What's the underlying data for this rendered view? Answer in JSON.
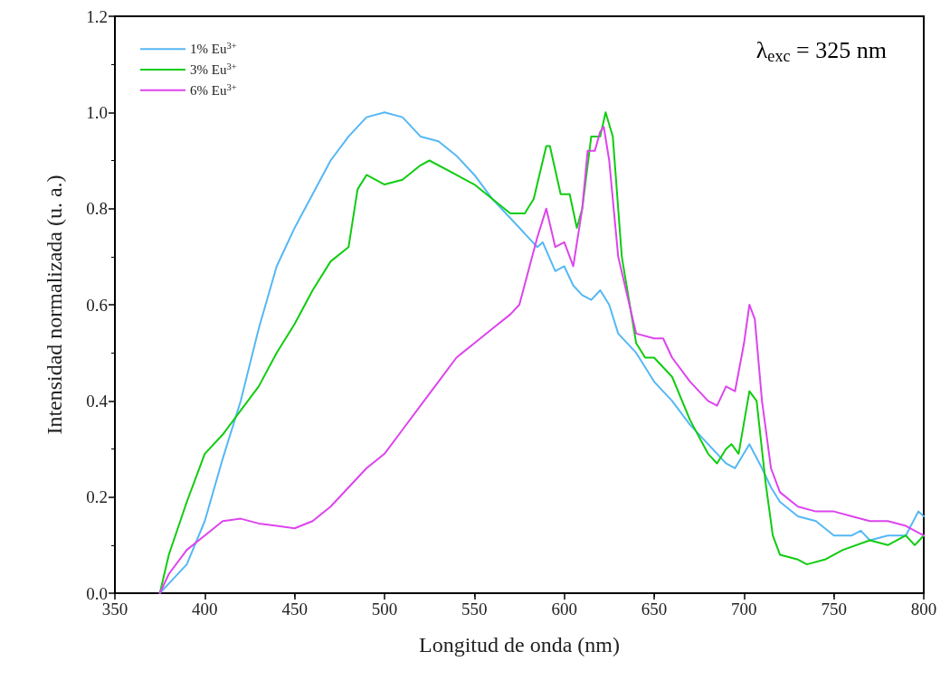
{
  "chart_data": {
    "type": "line",
    "xlabel": "Longitud de onda (nm)",
    "ylabel": "Intensidad normalizada (u. a.)",
    "annotations": [
      "λ$_{exc}$ = 325 nm"
    ],
    "xlim": [
      350,
      800
    ],
    "xticks": [
      350,
      400,
      450,
      500,
      550,
      600,
      650,
      700,
      750,
      800
    ],
    "ylim": [
      0,
      1.2
    ],
    "yticks": [
      {
        "value": 0,
        "label": "0.0"
      },
      {
        "value": 0.2,
        "label": "0.2"
      },
      {
        "value": 0.4,
        "label": "0.4"
      },
      {
        "value": 0.6,
        "label": "0.6"
      },
      {
        "value": 0.8,
        "label": "0.8"
      },
      {
        "value": 1,
        "label": "1.0"
      },
      {
        "value": 1.2,
        "label": "1.2"
      }
    ],
    "grid": false,
    "legend": "top left",
    "marker": "none",
    "line_style": "solid",
    "series": [
      {
        "name": "1% Eu$^{3+}$",
        "color": "#55b8f5",
        "x": [
          375,
          380,
          390,
          400,
          410,
          420,
          430,
          440,
          450,
          460,
          470,
          480,
          490,
          500,
          510,
          520,
          530,
          540,
          550,
          560,
          570,
          580,
          585,
          588,
          595,
          600,
          605,
          610,
          615,
          620,
          625,
          630,
          640,
          650,
          660,
          670,
          680,
          690,
          695,
          703,
          710,
          715,
          720,
          730,
          740,
          750,
          760,
          765,
          770,
          780,
          790,
          797,
          800
        ],
        "values": [
          0,
          0.02,
          0.06,
          0.15,
          0.28,
          0.4,
          0.55,
          0.68,
          0.76,
          0.83,
          0.9,
          0.95,
          0.99,
          1.0,
          0.99,
          0.95,
          0.94,
          0.91,
          0.87,
          0.82,
          0.78,
          0.74,
          0.72,
          0.73,
          0.67,
          0.68,
          0.64,
          0.62,
          0.61,
          0.63,
          0.6,
          0.54,
          0.5,
          0.44,
          0.4,
          0.35,
          0.31,
          0.27,
          0.26,
          0.31,
          0.26,
          0.22,
          0.19,
          0.16,
          0.15,
          0.12,
          0.12,
          0.13,
          0.11,
          0.12,
          0.12,
          0.17,
          0.16
        ]
      },
      {
        "name": "3% Eu$^{3+}$",
        "color": "#10cc10",
        "x": [
          375,
          380,
          390,
          400,
          410,
          420,
          430,
          440,
          450,
          460,
          470,
          480,
          485,
          490,
          500,
          510,
          520,
          525,
          540,
          550,
          560,
          570,
          578,
          583,
          590,
          592,
          598,
          603,
          607,
          610,
          615,
          620,
          623,
          627,
          632,
          640,
          645,
          650,
          660,
          670,
          680,
          685,
          690,
          693,
          697,
          703,
          707,
          712,
          716,
          720,
          730,
          735,
          745,
          755,
          770,
          780,
          790,
          795,
          800
        ],
        "values": [
          0,
          0.08,
          0.19,
          0.29,
          0.33,
          0.38,
          0.43,
          0.5,
          0.56,
          0.63,
          0.69,
          0.72,
          0.84,
          0.87,
          0.85,
          0.86,
          0.89,
          0.9,
          0.87,
          0.85,
          0.82,
          0.79,
          0.79,
          0.82,
          0.93,
          0.93,
          0.83,
          0.83,
          0.76,
          0.8,
          0.95,
          0.95,
          1.0,
          0.95,
          0.7,
          0.52,
          0.49,
          0.49,
          0.45,
          0.36,
          0.29,
          0.27,
          0.3,
          0.31,
          0.29,
          0.42,
          0.4,
          0.23,
          0.12,
          0.08,
          0.07,
          0.06,
          0.07,
          0.09,
          0.11,
          0.1,
          0.12,
          0.1,
          0.12
        ]
      },
      {
        "name": "6% Eu$^{3+}$",
        "color": "#dd44ee",
        "x": [
          375,
          380,
          390,
          400,
          410,
          420,
          430,
          440,
          450,
          460,
          470,
          480,
          490,
          500,
          510,
          520,
          530,
          540,
          550,
          560,
          570,
          575,
          580,
          585,
          590,
          595,
          600,
          605,
          610,
          613,
          617,
          620,
          622,
          625,
          630,
          640,
          650,
          655,
          660,
          670,
          680,
          685,
          690,
          695,
          700,
          703,
          706,
          710,
          715,
          720,
          730,
          740,
          750,
          760,
          770,
          780,
          790,
          800
        ],
        "values": [
          0,
          0.04,
          0.09,
          0.12,
          0.15,
          0.155,
          0.145,
          0.14,
          0.135,
          0.15,
          0.18,
          0.22,
          0.26,
          0.29,
          0.34,
          0.39,
          0.44,
          0.49,
          0.52,
          0.55,
          0.58,
          0.6,
          0.67,
          0.74,
          0.8,
          0.72,
          0.73,
          0.68,
          0.8,
          0.92,
          0.92,
          0.96,
          0.97,
          0.9,
          0.7,
          0.54,
          0.53,
          0.53,
          0.49,
          0.44,
          0.4,
          0.39,
          0.43,
          0.42,
          0.52,
          0.6,
          0.57,
          0.4,
          0.26,
          0.21,
          0.18,
          0.17,
          0.17,
          0.16,
          0.15,
          0.15,
          0.14,
          0.12
        ]
      }
    ]
  }
}
